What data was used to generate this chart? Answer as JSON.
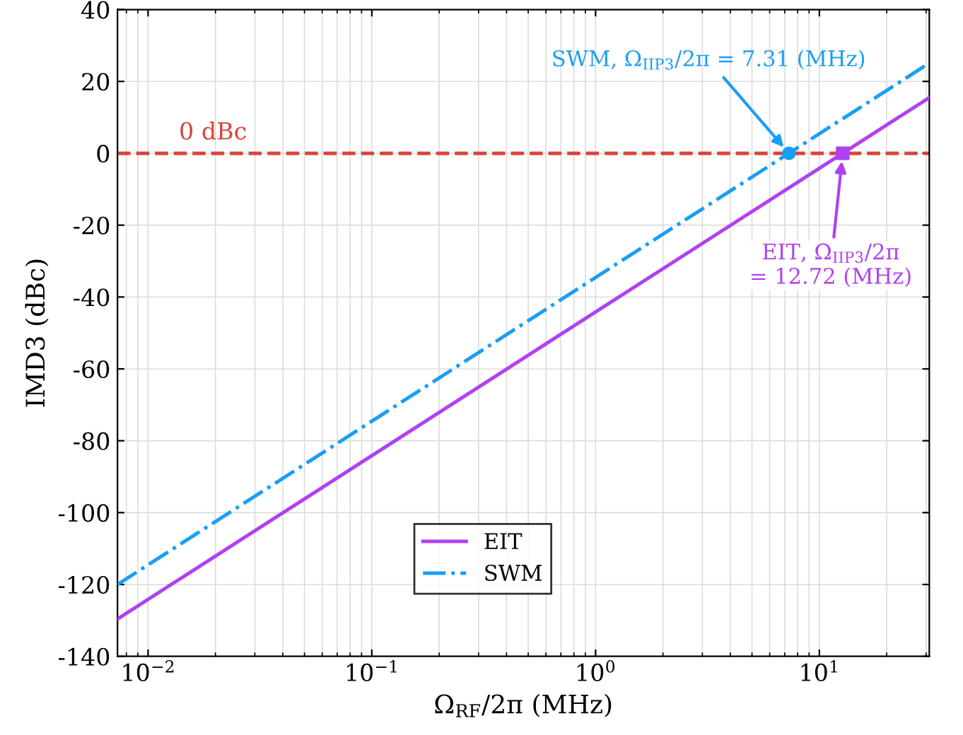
{
  "chart_data": {
    "type": "line",
    "xlabel": "Ω$_{RF}$/2π (MHz)",
    "ylabel": "IMD3 (dBc)",
    "log": "x",
    "xlim": [
      0.0073,
      31
    ],
    "ylim": [
      -140,
      40
    ],
    "xticks": [
      {
        "value": 0.01,
        "label": "10$^{−2}$"
      },
      {
        "value": 0.1,
        "label": "10$^{−1}$"
      },
      {
        "value": 1,
        "label": "10$^{0}$"
      },
      {
        "value": 10,
        "label": "10$^{1}$"
      }
    ],
    "yticks": [
      -140,
      -120,
      -100,
      -80,
      -60,
      -40,
      -20,
      0,
      20,
      40
    ],
    "grid": true,
    "legend": "bottom",
    "series": [
      {
        "name": "EIT",
        "color": "#b041f0",
        "x": [
          0.0073,
          12.72,
          31
        ],
        "values": [
          -129.6,
          0,
          15.5
        ],
        "line_style": "solid",
        "marker": "none"
      },
      {
        "name": "SWM",
        "color": "#1a9ef5",
        "x": [
          0.0073,
          7.31,
          31
        ],
        "values": [
          -120,
          0,
          25.1
        ],
        "line_style": "dashdot",
        "marker": "none"
      },
      {
        "type": "scatter",
        "color": "#b041f0",
        "x": [
          12.72
        ],
        "values": [
          0
        ],
        "marker": "square"
      },
      {
        "type": "scatter",
        "color": "#1a9ef5",
        "x": [
          7.31
        ],
        "values": [
          0
        ],
        "marker": "circle"
      }
    ],
    "ref_lines": [
      {
        "axis": "y",
        "value": 0,
        "label": "0 dBc",
        "color": "#d9433b",
        "line_style": "dashed"
      }
    ],
    "annotations": [
      {
        "text": "SWM, Ω$_{IIP3}$/2π = 7.31 (MHz)",
        "x": 7.31,
        "y": 0
      },
      {
        "text": "EIT, Ω$_{IIP3}$/2π\n= 12.72 (MHz)",
        "x": 12.72,
        "y": 0
      }
    ]
  }
}
